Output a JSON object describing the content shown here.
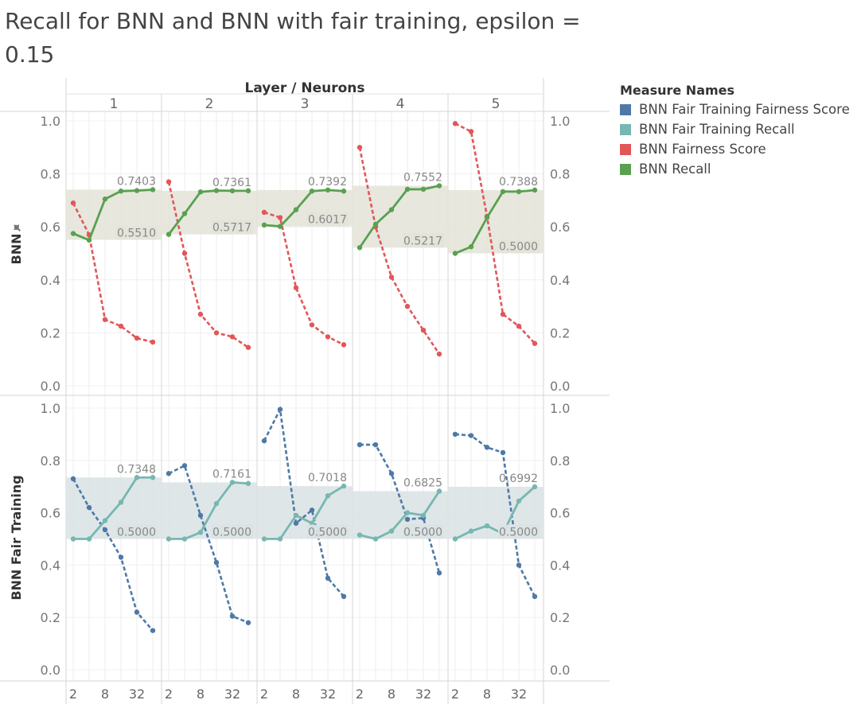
{
  "title": "Recall for BNN and BNN with fair training, epsilon = 0.15",
  "column_header": "Layer / Neurons",
  "row_labels": [
    "BNN",
    "BNN Fair Training"
  ],
  "pin_icon": "pin-icon",
  "legend": {
    "title": "Measure Names",
    "items": [
      {
        "label": "BNN Fair Training Fairness Score",
        "color": "#4e79a7"
      },
      {
        "label": "BNN Fair Training Recall",
        "color": "#76b7b2"
      },
      {
        "label": "BNN Fairness Score",
        "color": "#e15759"
      },
      {
        "label": "BNN Recall",
        "color": "#59a14f"
      }
    ]
  },
  "chart_data": {
    "type": "line",
    "layers": [
      "1",
      "2",
      "3",
      "4",
      "5"
    ],
    "x": [
      2,
      4,
      8,
      16,
      32,
      64
    ],
    "x_tick_labels": [
      "2",
      "8",
      "32"
    ],
    "x_scale": "log2",
    "ylim": [
      0,
      1
    ],
    "y_ticks": [
      "0.0",
      "0.2",
      "0.4",
      "0.6",
      "0.8",
      "1.0"
    ],
    "rows": [
      {
        "name": "BNN",
        "band_color": "#e4e4da",
        "recall_color": "#59a14f",
        "fairness_color": "#e15759",
        "panels": [
          {
            "recall": [
              0.575,
              0.55,
              0.705,
              0.735,
              0.737,
              0.7403
            ],
            "fairness": [
              0.69,
              0.57,
              0.25,
              0.225,
              0.18,
              0.165
            ],
            "band_max": "0.7403",
            "band_min": "0.5510"
          },
          {
            "recall": [
              0.5717,
              0.65,
              0.732,
              0.737,
              0.736,
              0.7361
            ],
            "fairness": [
              0.77,
              0.5,
              0.27,
              0.2,
              0.185,
              0.145
            ],
            "band_max": "0.7361",
            "band_min": "0.5717"
          },
          {
            "recall": [
              0.607,
              0.6017,
              0.665,
              0.735,
              0.7392,
              0.735
            ],
            "fairness": [
              0.655,
              0.635,
              0.37,
              0.23,
              0.185,
              0.155
            ],
            "band_max": "0.7392",
            "band_min": "0.6017"
          },
          {
            "recall": [
              0.5217,
              0.61,
              0.665,
              0.742,
              0.742,
              0.7552
            ],
            "fairness": [
              0.9,
              0.6,
              0.41,
              0.3,
              0.21,
              0.12
            ],
            "band_max": "0.7552",
            "band_min": "0.5217"
          },
          {
            "recall": [
              0.5,
              0.525,
              0.635,
              0.733,
              0.733,
              0.7388
            ],
            "fairness": [
              0.99,
              0.96,
              0.64,
              0.27,
              0.225,
              0.16
            ],
            "band_max": "0.7388",
            "band_min": "0.5000"
          }
        ]
      },
      {
        "name": "BNN Fair Training",
        "band_color": "#dbe3e4",
        "recall_color": "#76b7b2",
        "fairness_color": "#4e79a7",
        "panels": [
          {
            "recall": [
              0.5,
              0.5,
              0.57,
              0.64,
              0.7348,
              0.7348
            ],
            "fairness": [
              0.73,
              0.62,
              0.535,
              0.43,
              0.22,
              0.15
            ],
            "band_max": "0.7348",
            "band_min": "0.5000"
          },
          {
            "recall": [
              0.5,
              0.5,
              0.525,
              0.635,
              0.7161,
              0.712
            ],
            "fairness": [
              0.75,
              0.78,
              0.59,
              0.41,
              0.205,
              0.18
            ],
            "band_max": "0.7161",
            "band_min": "0.5000"
          },
          {
            "recall": [
              0.5,
              0.5,
              0.59,
              0.56,
              0.665,
              0.7018
            ],
            "fairness": [
              0.875,
              0.995,
              0.56,
              0.61,
              0.35,
              0.28
            ],
            "band_max": "0.7018",
            "band_min": "0.5000"
          },
          {
            "recall": [
              0.515,
              0.5,
              0.53,
              0.6,
              0.59,
              0.6825
            ],
            "fairness": [
              0.86,
              0.86,
              0.75,
              0.575,
              0.58,
              0.37
            ],
            "band_max": "0.6825",
            "band_min": "0.5000"
          },
          {
            "recall": [
              0.5,
              0.53,
              0.55,
              0.52,
              0.645,
              0.6992
            ],
            "fairness": [
              0.9,
              0.895,
              0.85,
              0.83,
              0.4,
              0.28
            ],
            "band_max": "0.6992",
            "band_min": "0.5000"
          }
        ]
      }
    ]
  }
}
